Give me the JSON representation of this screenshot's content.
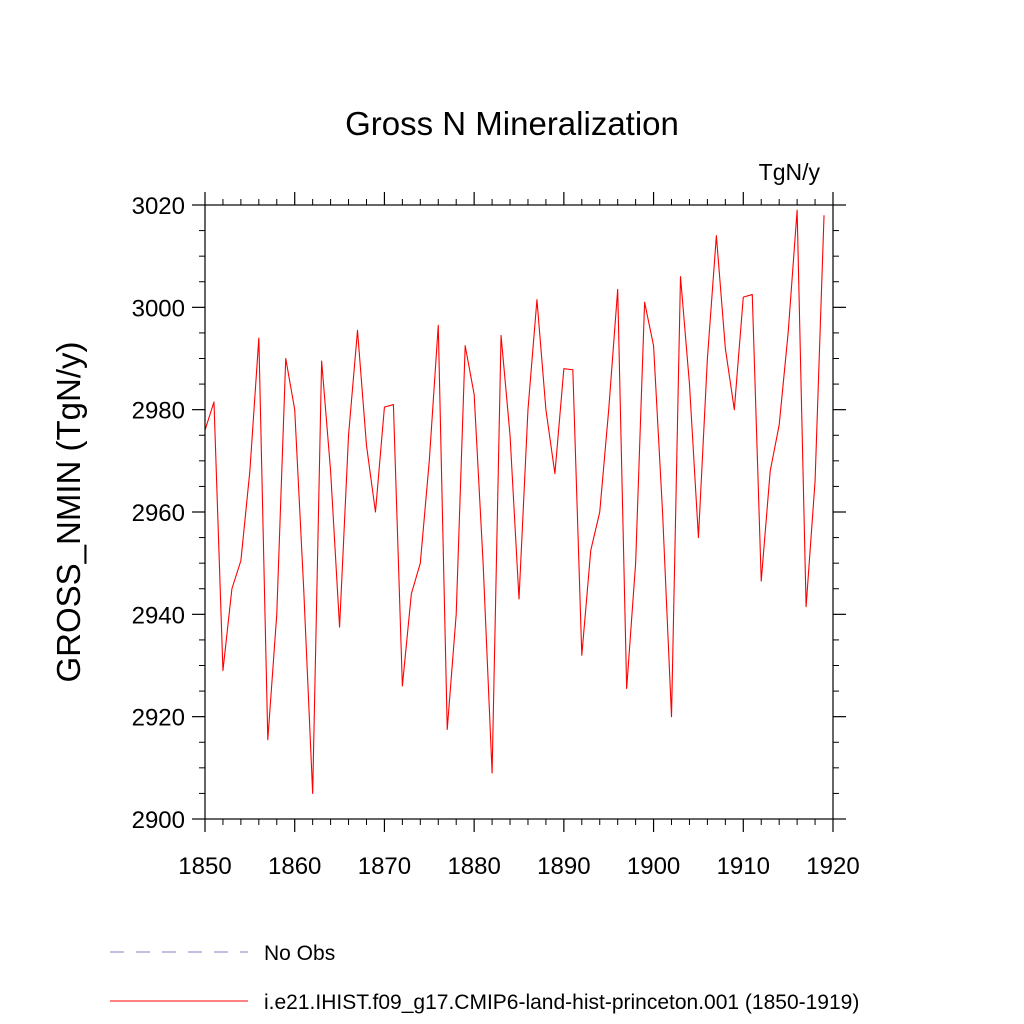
{
  "chart_data": {
    "type": "line",
    "title": "Gross N Mineralization",
    "units": "TgN/y",
    "xlabel": "",
    "ylabel": "GROSS_NMIN  (TgN/y)",
    "xlim": [
      1850,
      1920
    ],
    "ylim": [
      2900,
      3020
    ],
    "xticks": [
      1850,
      1860,
      1870,
      1880,
      1890,
      1900,
      1910,
      1920
    ],
    "yticks": [
      2900,
      2920,
      2940,
      2960,
      2980,
      3000,
      3020
    ],
    "grid": false,
    "legend_position": "bottom",
    "legend": [
      {
        "label": "No Obs",
        "color": "#8080c0",
        "style": "dashed"
      },
      {
        "label": "i.e21.IHIST.f09_g17.CMIP6-land-hist-princeton.001 (1850-1919)",
        "color": "#ff0000",
        "style": "solid"
      }
    ],
    "series": [
      {
        "name": "i.e21.IHIST.f09_g17.CMIP6-land-hist-princeton.001 (1850-1919)",
        "color": "#ff0000",
        "x": [
          1850,
          1851,
          1852,
          1853,
          1854,
          1855,
          1856,
          1857,
          1858,
          1859,
          1860,
          1861,
          1862,
          1863,
          1864,
          1865,
          1866,
          1867,
          1868,
          1869,
          1870,
          1871,
          1872,
          1873,
          1874,
          1875,
          1876,
          1877,
          1878,
          1879,
          1880,
          1881,
          1882,
          1883,
          1884,
          1885,
          1886,
          1887,
          1888,
          1889,
          1890,
          1891,
          1892,
          1893,
          1894,
          1895,
          1896,
          1897,
          1898,
          1899,
          1900,
          1901,
          1902,
          1903,
          1904,
          1905,
          1906,
          1907,
          1908,
          1909,
          1910,
          1911,
          1912,
          1913,
          1914,
          1915,
          1916,
          1917,
          1918,
          1919
        ],
        "y": [
          2976,
          2981.5,
          2929,
          2945,
          2950.5,
          2968,
          2994,
          2915.5,
          2940,
          2990,
          2980,
          2945,
          2905,
          2989.5,
          2968,
          2937.5,
          2975,
          2995.5,
          2973,
          2960,
          2980.5,
          2981,
          2926,
          2944,
          2950,
          2970,
          2996.5,
          2917.5,
          2940,
          2992.5,
          2983,
          2950,
          2909,
          2994.5,
          2975,
          2943,
          2980,
          3001.5,
          2980,
          2967.5,
          2988,
          2987.8,
          2932,
          2952.5,
          2960,
          2980,
          3003.5,
          2925.5,
          2950,
          3001,
          2992.5,
          2960,
          2920,
          3006,
          2985,
          2955,
          2990,
          3014,
          2992,
          2980,
          3002,
          3002.5,
          2946.5,
          2968,
          2977,
          2995,
          3019,
          2941.5,
          2966,
          3018
        ]
      }
    ]
  }
}
